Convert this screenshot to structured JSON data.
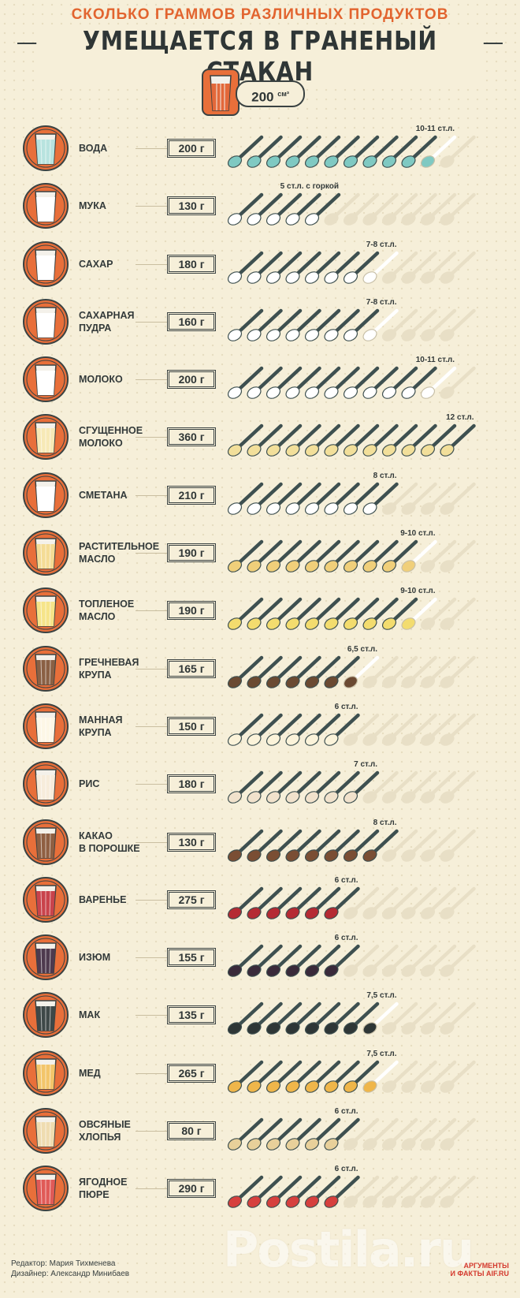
{
  "header": {
    "subtitle": "СКОЛЬКО ГРАММОВ РАЗЛИЧНЫХ ПРОДУКТОВ",
    "title": "УМЕЩАЕТСЯ В ГРАНЕНЫЙ СТАКАН",
    "volume": "200",
    "volume_unit": "см³"
  },
  "items": [
    {
      "name": "вода",
      "weight": "200 г",
      "spoons_label": "10-11 ст.л.",
      "spoons": 10.5,
      "color": "#7fc9c2",
      "glass": "#7fc9c2",
      "content": "#b8e3df"
    },
    {
      "name": "мука",
      "weight": "130 г",
      "spoons_label": "5 ст.л. с горкой",
      "spoons": 5,
      "color": "#ffffff",
      "glass": "#ffffff",
      "content": "#ffffff"
    },
    {
      "name": "сахар",
      "weight": "180 г",
      "spoons_label": "7-8 ст.л.",
      "spoons": 7.5,
      "color": "#ffffff",
      "glass": "#ffffff",
      "content": "#ffffff"
    },
    {
      "name": "сахарная\nпудра",
      "weight": "160 г",
      "spoons_label": "7-8 ст.л.",
      "spoons": 7.5,
      "color": "#ffffff",
      "glass": "#ffffff",
      "content": "#ffffff"
    },
    {
      "name": "молоко",
      "weight": "200 г",
      "spoons_label": "10-11 ст.л.",
      "spoons": 10.5,
      "color": "#ffffff",
      "glass": "#ffffff",
      "content": "#ffffff"
    },
    {
      "name": "сгущенное\nмолоко",
      "weight": "360 г",
      "spoons_label": "12 ст.л.",
      "spoons": 12,
      "color": "#f2df9a",
      "glass": "#f2df9a",
      "content": "#f7e9b6"
    },
    {
      "name": "сметана",
      "weight": "210 г",
      "spoons_label": "8 ст.л.",
      "spoons": 8,
      "color": "#ffffff",
      "glass": "#ffffff",
      "content": "#ffffff"
    },
    {
      "name": "растительное\nмасло",
      "weight": "190 г",
      "spoons_label": "9-10 ст.л.",
      "spoons": 9.5,
      "color": "#f0cf7a",
      "glass": "#f0cf7a",
      "content": "#f4dc95"
    },
    {
      "name": "топленое\nмасло",
      "weight": "190 г",
      "spoons_label": "9-10 ст.л.",
      "spoons": 9.5,
      "color": "#f3dc6e",
      "glass": "#f3dc6e",
      "content": "#f6e489"
    },
    {
      "name": "гречневая\nкрупа",
      "weight": "165 г",
      "spoons_label": "6,5 ст.л.",
      "spoons": 6.5,
      "color": "#6b4a32",
      "glass": "#6b4a32",
      "content": "#8a6044"
    },
    {
      "name": "манная\nкрупа",
      "weight": "150 г",
      "spoons_label": "6 ст.л.",
      "spoons": 6,
      "color": "#fbf3da",
      "glass": "#fbf3da",
      "content": "#fdf7e6"
    },
    {
      "name": "рис",
      "weight": "180 г",
      "spoons_label": "7 ст.л.",
      "spoons": 7,
      "color": "#f1e2cc",
      "glass": "#f1e2cc",
      "content": "#f7ecdb"
    },
    {
      "name": "какао\nв порошке",
      "weight": "130 г",
      "spoons_label": "8 ст.л.",
      "spoons": 8,
      "color": "#7a4e34",
      "glass": "#7a4e34",
      "content": "#8f5f42"
    },
    {
      "name": "варенье",
      "weight": "275 г",
      "spoons_label": "6 ст.л.",
      "spoons": 6,
      "color": "#b52a33",
      "glass": "#b52a33",
      "content": "#c9434b"
    },
    {
      "name": "изюм",
      "weight": "155 г",
      "spoons_label": "6 ст.л.",
      "spoons": 6,
      "color": "#3a2a3a",
      "glass": "#3a2a3a",
      "content": "#4e3a4e"
    },
    {
      "name": "мак",
      "weight": "135 г",
      "spoons_label": "7,5 ст.л.",
      "spoons": 7.5,
      "color": "#2e3636",
      "glass": "#2e3636",
      "content": "#3e4848"
    },
    {
      "name": "мед",
      "weight": "265 г",
      "spoons_label": "7,5 ст.л.",
      "spoons": 7.5,
      "color": "#efb64a",
      "glass": "#efb64a",
      "content": "#f3c56a"
    },
    {
      "name": "овсяные\nхлопья",
      "weight": "80 г",
      "spoons_label": "6 ст.л.",
      "spoons": 6,
      "color": "#e8d09a",
      "glass": "#e8d09a",
      "content": "#efdcb0"
    },
    {
      "name": "ягодное\nпюре",
      "weight": "290 г",
      "spoons_label": "6 ст.л.",
      "spoons": 6,
      "color": "#d6403e",
      "glass": "#d6403e",
      "content": "#e05a57"
    }
  ],
  "footer": {
    "editor": "Редактор: Мария Тихменева",
    "designer": "Дизайнер: Александр Минибаев",
    "brand_line1": "АРГУМЕНТЫ",
    "brand_line2": "И ФАКТЫ AIF.RU"
  },
  "watermark": "Postila.ru",
  "colors": {
    "background": "#f6efd9",
    "accent": "#e2642f",
    "ink": "#333a3a",
    "spoon_handle": "#3e5050",
    "empty_spoon": "#e8dfc6",
    "circle": "#e86f3a"
  }
}
